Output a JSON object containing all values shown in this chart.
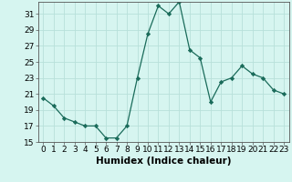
{
  "title": "",
  "xlabel": "Humidex (Indice chaleur)",
  "x": [
    0,
    1,
    2,
    3,
    4,
    5,
    6,
    7,
    8,
    9,
    10,
    11,
    12,
    13,
    14,
    15,
    16,
    17,
    18,
    19,
    20,
    21,
    22,
    23
  ],
  "y": [
    20.5,
    19.5,
    18.0,
    17.5,
    17.0,
    17.0,
    15.5,
    15.5,
    17.0,
    23.0,
    28.5,
    32.0,
    31.0,
    32.5,
    26.5,
    25.5,
    20.0,
    22.5,
    23.0,
    24.5,
    23.5,
    23.0,
    21.5,
    21.0
  ],
  "ylim": [
    15,
    32.5
  ],
  "yticks": [
    15,
    17,
    19,
    21,
    23,
    25,
    27,
    29,
    31
  ],
  "line_color": "#1a6b5a",
  "marker": "D",
  "marker_size": 2.2,
  "bg_color": "#d6f5f0",
  "grid_color": "#b8e0da",
  "tick_label_fontsize": 6.5,
  "xlabel_fontsize": 7.5
}
